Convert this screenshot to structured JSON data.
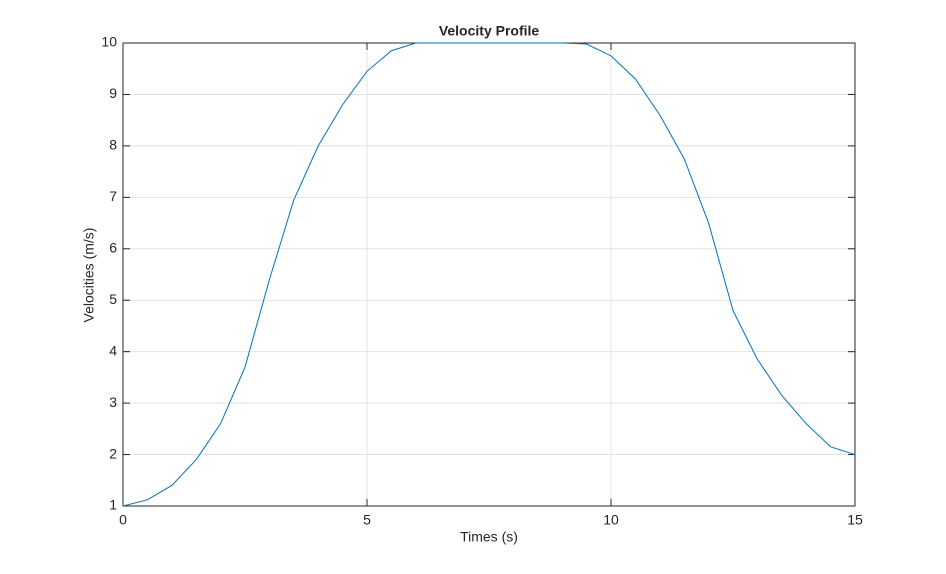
{
  "chart_data": {
    "type": "line",
    "title": "Velocity Profile",
    "xlabel": "Times (s)",
    "ylabel": "Velocities (m/s)",
    "x": [
      0,
      0.5,
      1,
      1.5,
      2,
      2.5,
      3,
      3.5,
      4,
      4.5,
      5,
      5.5,
      6,
      6.5,
      7,
      7.5,
      8,
      8.5,
      9,
      9.5,
      10,
      10.5,
      11,
      11.5,
      12,
      12.5,
      13,
      13.5,
      14,
      14.5,
      15
    ],
    "series": [
      {
        "color": "#0072bd",
        "values": [
          1,
          1.12,
          1.4,
          1.9,
          2.6,
          3.7,
          5.4,
          6.95,
          8,
          8.8,
          9.45,
          9.85,
          10,
          10,
          10,
          10,
          10,
          10,
          10,
          9.98,
          9.75,
          9.3,
          8.6,
          7.75,
          6.5,
          4.8,
          3.85,
          3.15,
          2.6,
          2.15,
          2
        ]
      }
    ],
    "xlim": [
      0,
      15
    ],
    "xticks": [
      0,
      5,
      10,
      15
    ],
    "ylim": [
      1,
      10
    ],
    "yticks": [
      1,
      2,
      3,
      4,
      5,
      6,
      7,
      8,
      9,
      10
    ],
    "grid": true
  }
}
